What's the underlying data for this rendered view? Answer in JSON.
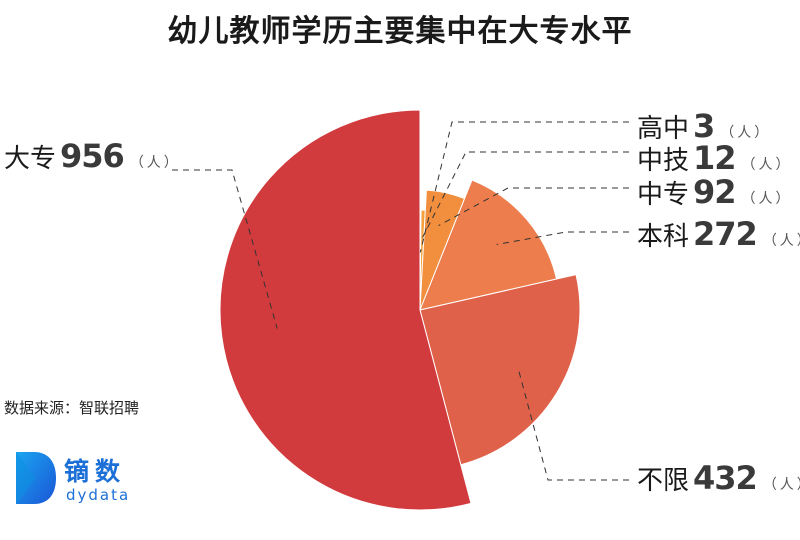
{
  "title": "幼儿教师学历主要集中在大专水平",
  "source": "数据来源：智联招聘",
  "logo": {
    "cn": "镝数",
    "en": "dydata"
  },
  "chart_data": {
    "type": "pie",
    "unit": "（人）",
    "slices": [
      {
        "label": "高中",
        "value": 3,
        "color": "#f5b23a"
      },
      {
        "label": "中技",
        "value": 12,
        "color": "#f5a03c"
      },
      {
        "label": "中专",
        "value": 92,
        "color": "#f28f3f"
      },
      {
        "label": "本科",
        "value": 272,
        "color": "#ed7d4c"
      },
      {
        "label": "不限",
        "value": 432,
        "color": "#e0614a"
      },
      {
        "label": "大专",
        "value": 956,
        "color": "#d23b3d"
      }
    ]
  }
}
